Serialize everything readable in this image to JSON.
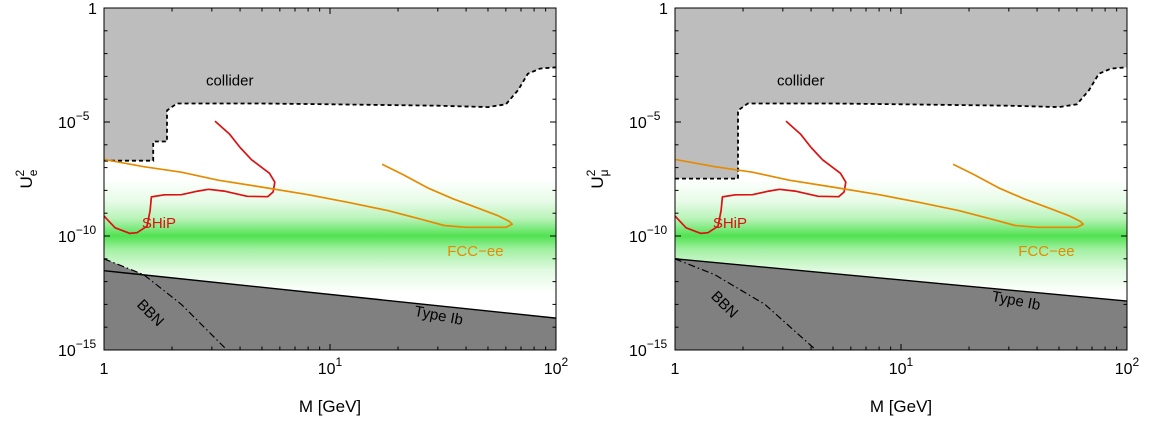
{
  "chart_data": [
    {
      "type": "line",
      "xlabel": "M [GeV]",
      "ylabel": "U",
      "ylabel_sub": "e",
      "ylabel_sup": "2",
      "xscale": "log",
      "yscale": "log",
      "xlim": [
        1,
        100
      ],
      "ylim": [
        1e-15,
        1
      ],
      "xticks": [
        {
          "value": 1,
          "base": "1",
          "exp": ""
        },
        {
          "value": 10,
          "base": "10",
          "exp": "1"
        },
        {
          "value": 100,
          "base": "10",
          "exp": "2"
        }
      ],
      "yticks": [
        {
          "value": 1e-15,
          "base": "10",
          "exp": "−15"
        },
        {
          "value": 1e-10,
          "base": "10",
          "exp": "−10"
        },
        {
          "value": 1e-05,
          "base": "10",
          "exp": "−5"
        },
        {
          "value": 1,
          "base": "1",
          "exp": ""
        }
      ],
      "regions": [
        {
          "name": "collider",
          "label": "collider",
          "color": "#bdbdbd",
          "side": "above",
          "boundary": [
            [
              1,
              2e-07
            ],
            [
              1.65,
              2e-07
            ],
            [
              1.65,
              1.4e-06
            ],
            [
              1.9,
              1.4e-06
            ],
            [
              1.9,
              3.2e-05
            ],
            [
              2.1,
              6.5e-05
            ],
            [
              5,
              6.5e-05
            ],
            [
              10,
              6e-05
            ],
            [
              30,
              5.2e-05
            ],
            [
              50,
              4.5e-05
            ],
            [
              60,
              6e-05
            ],
            [
              68,
              0.00025
            ],
            [
              75,
              0.0013
            ],
            [
              85,
              0.0022
            ],
            [
              100,
              0.0025
            ]
          ]
        },
        {
          "name": "type-ib",
          "label": "Type Ib",
          "color": "#808080",
          "side": "below",
          "boundary": [
            [
              1,
              3e-12
            ],
            [
              100,
              2.5e-14
            ]
          ]
        },
        {
          "name": "bbn",
          "label": "BBN",
          "color": "#808080",
          "side": "below",
          "boundary": [
            [
              1,
              1e-11
            ],
            [
              1.5,
              2e-12
            ],
            [
              2.2,
              1e-13
            ],
            [
              3.5,
              1e-15
            ]
          ]
        }
      ],
      "band": {
        "name": "green-band",
        "color": "#33dd33",
        "center": 1e-10,
        "width_decades": 5
      },
      "series": [
        {
          "name": "SHiP",
          "color": "#dd1111",
          "points": [
            [
              1,
              7.5e-10
            ],
            [
              1.12,
              2.3e-10
            ],
            [
              1.3,
              1.3e-10
            ],
            [
              1.4,
              1.4e-10
            ],
            [
              1.55,
              2.7e-10
            ],
            [
              1.6,
              1.3e-09
            ],
            [
              1.62,
              5.2e-09
            ],
            [
              1.85,
              6.4e-09
            ],
            [
              2.2,
              6.5e-09
            ],
            [
              2.6,
              9.3e-09
            ],
            [
              2.9,
              1.12e-08
            ],
            [
              3.4,
              9.3e-09
            ],
            [
              4.3,
              5.5e-09
            ],
            [
              5.3,
              5.3e-09
            ],
            [
              5.6,
              8.5e-09
            ],
            [
              5.7,
              2.3e-08
            ],
            [
              5.4,
              5.6e-08
            ],
            [
              4.5,
              2.2e-07
            ],
            [
              4,
              7.6e-07
            ],
            [
              3.6,
              2.9e-06
            ],
            [
              3.1,
              1.1e-05
            ]
          ]
        },
        {
          "name": "FCC-ee",
          "color": "#e68a00",
          "points": [
            [
              1,
              2.3e-07
            ],
            [
              1.5,
              1.1e-07
            ],
            [
              2.2,
              6.3e-08
            ],
            [
              3.2,
              2.8e-08
            ],
            [
              5,
              1.4e-08
            ],
            [
              8,
              6.5e-09
            ],
            [
              12,
              3e-09
            ],
            [
              18,
              1.3e-09
            ],
            [
              25,
              5.6e-10
            ],
            [
              32,
              2.9e-10
            ],
            [
              40,
              2.4e-10
            ],
            [
              50,
              2.4e-10
            ],
            [
              60,
              2.4e-10
            ],
            [
              64,
              3.3e-10
            ],
            [
              62,
              4.4e-10
            ],
            [
              55,
              8e-10
            ],
            [
              45,
              1.7e-09
            ],
            [
              35,
              4.3e-09
            ],
            [
              27,
              1.3e-08
            ],
            [
              21,
              5e-08
            ],
            [
              17,
              1.4e-07
            ]
          ]
        }
      ],
      "annotations": [
        {
          "text": "SHiP",
          "color": "#dd1111"
        },
        {
          "text": "FCC−ee",
          "color": "#e68a00"
        }
      ]
    },
    {
      "type": "line",
      "xlabel": "M [GeV]",
      "ylabel": "U",
      "ylabel_sub": "μ",
      "ylabel_sup": "2",
      "xscale": "log",
      "yscale": "log",
      "xlim": [
        1,
        100
      ],
      "ylim": [
        1e-15,
        1
      ],
      "xticks": [
        {
          "value": 1,
          "base": "1",
          "exp": ""
        },
        {
          "value": 10,
          "base": "10",
          "exp": "1"
        },
        {
          "value": 100,
          "base": "10",
          "exp": "2"
        }
      ],
      "yticks": [
        {
          "value": 1e-15,
          "base": "10",
          "exp": "−15"
        },
        {
          "value": 1e-10,
          "base": "10",
          "exp": "−10"
        },
        {
          "value": 1e-05,
          "base": "10",
          "exp": "−5"
        },
        {
          "value": 1,
          "base": "1",
          "exp": ""
        }
      ],
      "regions": [
        {
          "name": "collider",
          "label": "collider",
          "color": "#bdbdbd",
          "side": "above",
          "boundary": [
            [
              1,
              3.3e-08
            ],
            [
              1.9,
              3.3e-08
            ],
            [
              1.9,
              3.2e-05
            ],
            [
              2.1,
              6.5e-05
            ],
            [
              5,
              6.5e-05
            ],
            [
              10,
              6e-05
            ],
            [
              30,
              5.2e-05
            ],
            [
              50,
              4.5e-05
            ],
            [
              60,
              6e-05
            ],
            [
              68,
              0.00025
            ],
            [
              75,
              0.0013
            ],
            [
              85,
              0.0022
            ],
            [
              100,
              0.0025
            ]
          ]
        },
        {
          "name": "type-ib",
          "label": "Type Ib",
          "color": "#808080",
          "side": "below",
          "boundary": [
            [
              1,
              1e-11
            ],
            [
              100,
              1.4e-13
            ]
          ]
        },
        {
          "name": "bbn",
          "label": "BBN",
          "color": "#808080",
          "side": "below",
          "boundary": [
            [
              1,
              1e-11
            ],
            [
              1.5,
              2e-12
            ],
            [
              2.5,
              1e-13
            ],
            [
              4.2,
              1e-15
            ]
          ]
        }
      ],
      "band": {
        "name": "green-band",
        "color": "#33dd33",
        "center": 1e-10,
        "width_decades": 5
      },
      "series": [
        {
          "name": "SHiP",
          "color": "#dd1111",
          "points": [
            [
              1,
              7.5e-10
            ],
            [
              1.12,
              2.3e-10
            ],
            [
              1.3,
              1.3e-10
            ],
            [
              1.4,
              1.4e-10
            ],
            [
              1.55,
              2.7e-10
            ],
            [
              1.6,
              1.3e-09
            ],
            [
              1.62,
              5.2e-09
            ],
            [
              1.85,
              6.4e-09
            ],
            [
              2.2,
              6.5e-09
            ],
            [
              2.6,
              9.3e-09
            ],
            [
              2.9,
              1.12e-08
            ],
            [
              3.4,
              9.3e-09
            ],
            [
              4.3,
              5.5e-09
            ],
            [
              5.3,
              5.3e-09
            ],
            [
              5.6,
              8.5e-09
            ],
            [
              5.7,
              2.3e-08
            ],
            [
              5.4,
              5.6e-08
            ],
            [
              4.5,
              2.2e-07
            ],
            [
              4,
              7.6e-07
            ],
            [
              3.6,
              2.9e-06
            ],
            [
              3.1,
              1.1e-05
            ]
          ]
        },
        {
          "name": "FCC-ee",
          "color": "#e68a00",
          "points": [
            [
              1,
              2.3e-07
            ],
            [
              1.5,
              1.1e-07
            ],
            [
              2.2,
              6.3e-08
            ],
            [
              3.2,
              2.8e-08
            ],
            [
              5,
              1.4e-08
            ],
            [
              8,
              6.5e-09
            ],
            [
              12,
              3e-09
            ],
            [
              18,
              1.3e-09
            ],
            [
              25,
              5.6e-10
            ],
            [
              32,
              2.9e-10
            ],
            [
              40,
              2.4e-10
            ],
            [
              50,
              2.4e-10
            ],
            [
              60,
              2.4e-10
            ],
            [
              64,
              3.3e-10
            ],
            [
              62,
              4.4e-10
            ],
            [
              55,
              8e-10
            ],
            [
              45,
              1.7e-09
            ],
            [
              35,
              4.3e-09
            ],
            [
              27,
              1.3e-08
            ],
            [
              21,
              5e-08
            ],
            [
              17,
              1.4e-07
            ]
          ]
        }
      ],
      "annotations": [
        {
          "text": "SHiP",
          "color": "#dd1111"
        },
        {
          "text": "FCC−ee",
          "color": "#e68a00"
        }
      ]
    }
  ]
}
